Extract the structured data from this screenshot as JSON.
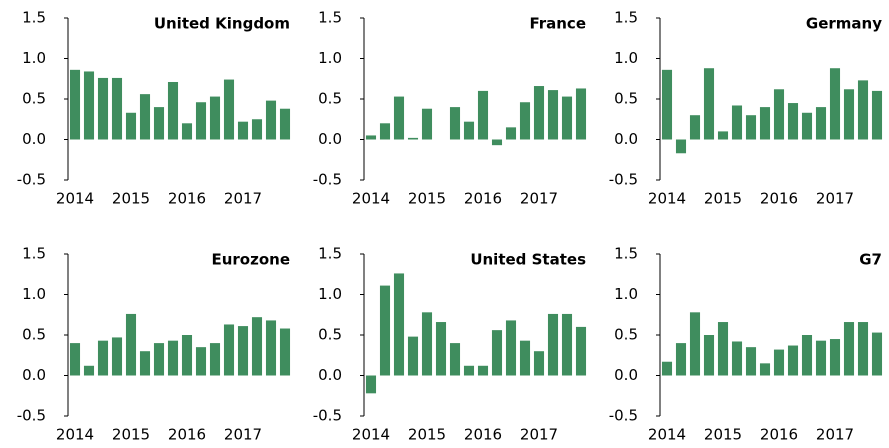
{
  "chart_data": [
    {
      "type": "bar",
      "title": "United Kingdom",
      "categories": [
        "2014",
        null,
        null,
        null,
        "2015",
        null,
        null,
        null,
        "2016",
        null,
        null,
        null,
        "2017",
        null,
        null,
        null
      ],
      "values": [
        0.86,
        0.84,
        0.76,
        0.76,
        0.33,
        0.56,
        0.4,
        0.71,
        0.2,
        0.46,
        0.53,
        0.74,
        0.22,
        0.25,
        0.48,
        0.38
      ],
      "color": "#3f8d5e",
      "ylim": [
        -0.5,
        1.5
      ],
      "yticks": [
        -0.5,
        {
          "value": 0,
          "label": "0.0"
        },
        0.5,
        {
          "value": 1,
          "label": "1.0"
        },
        1.5
      ]
    },
    {
      "type": "bar",
      "title": "France",
      "categories": [
        "2014",
        null,
        null,
        null,
        "2015",
        null,
        null,
        null,
        "2016",
        null,
        null,
        null,
        "2017",
        null,
        null,
        null
      ],
      "values": [
        0.05,
        0.2,
        0.53,
        0.02,
        0.38,
        0.0,
        0.4,
        0.22,
        0.6,
        -0.07,
        0.15,
        0.46,
        0.66,
        0.61,
        0.53,
        0.63
      ],
      "color": "#3f8d5e",
      "ylim": [
        -0.5,
        1.5
      ],
      "yticks": [
        -0.5,
        {
          "value": 0,
          "label": "0.0"
        },
        0.5,
        {
          "value": 1,
          "label": "1.0"
        },
        1.5
      ]
    },
    {
      "type": "bar",
      "title": "Germany",
      "categories": [
        "2014",
        null,
        null,
        null,
        "2015",
        null,
        null,
        null,
        "2016",
        null,
        null,
        null,
        "2017",
        null,
        null,
        null
      ],
      "values": [
        0.86,
        -0.17,
        0.3,
        0.88,
        0.1,
        0.42,
        0.3,
        0.4,
        0.62,
        0.45,
        0.33,
        0.4,
        0.88,
        0.62,
        0.73,
        0.6
      ],
      "color": "#3f8d5e",
      "ylim": [
        -0.5,
        1.5
      ],
      "yticks": [
        -0.5,
        {
          "value": 0,
          "label": "0.0"
        },
        0.5,
        {
          "value": 1,
          "label": "1.0"
        },
        1.5
      ]
    },
    {
      "type": "bar",
      "title": "Eurozone",
      "categories": [
        "2014",
        null,
        null,
        null,
        "2015",
        null,
        null,
        null,
        "2016",
        null,
        null,
        null,
        "2017",
        null,
        null,
        null
      ],
      "values": [
        0.4,
        0.12,
        0.43,
        0.47,
        0.76,
        0.3,
        0.4,
        0.43,
        0.5,
        0.35,
        0.4,
        0.63,
        0.61,
        0.72,
        0.68,
        0.58
      ],
      "color": "#3f8d5e",
      "ylim": [
        -0.5,
        1.5
      ],
      "yticks": [
        -0.5,
        {
          "value": 0,
          "label": "0.0"
        },
        0.5,
        {
          "value": 1,
          "label": "1.0"
        },
        1.5
      ]
    },
    {
      "type": "bar",
      "title": "United States",
      "categories": [
        "2014",
        null,
        null,
        null,
        "2015",
        null,
        null,
        null,
        "2016",
        null,
        null,
        null,
        "2017",
        null,
        null,
        null
      ],
      "values": [
        -0.22,
        1.11,
        1.26,
        0.48,
        0.78,
        0.66,
        0.4,
        0.12,
        0.12,
        0.56,
        0.68,
        0.43,
        0.3,
        0.76,
        0.76,
        0.6
      ],
      "color": "#3f8d5e",
      "ylim": [
        -0.5,
        1.5
      ],
      "yticks": [
        -0.5,
        {
          "value": 0,
          "label": "0.0"
        },
        0.5,
        {
          "value": 1,
          "label": "1.0"
        },
        1.5
      ]
    },
    {
      "type": "bar",
      "title": "G7",
      "categories": [
        "2014",
        null,
        null,
        null,
        "2015",
        null,
        null,
        null,
        "2016",
        null,
        null,
        null,
        "2017",
        null,
        null,
        null
      ],
      "values": [
        0.17,
        0.4,
        0.78,
        0.5,
        0.66,
        0.42,
        0.35,
        0.15,
        0.32,
        0.37,
        0.5,
        0.43,
        0.45,
        0.66,
        0.66,
        0.53
      ],
      "color": "#3f8d5e",
      "ylim": [
        -0.5,
        1.5
      ],
      "yticks": [
        -0.5,
        {
          "value": 0,
          "label": "0.0"
        },
        0.5,
        {
          "value": 1,
          "label": "1.0"
        },
        1.5
      ]
    }
  ]
}
